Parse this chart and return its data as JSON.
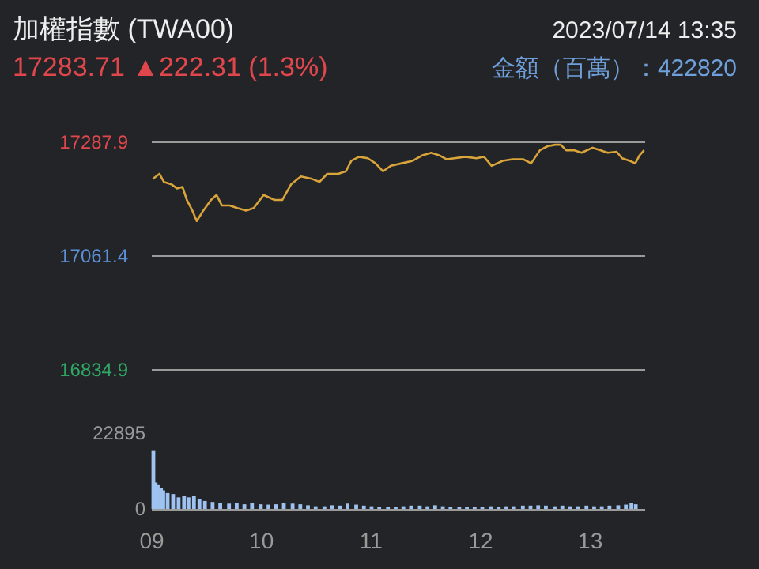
{
  "chart_data": [
    {
      "type": "line",
      "title": "加權指數 (TWA00)",
      "subtitle": "17283.71 ▲222.31 (1.3%)",
      "annotations": [
        "2023/07/14 13:35",
        "金額（百萬）：422820"
      ],
      "xlim": [
        9,
        13.5
      ],
      "ylim": [
        16834.9,
        17287.9
      ],
      "yticks": [
        17287.9,
        17061.4,
        16834.9
      ],
      "grid": "y",
      "tick_labels": "y",
      "series": [
        {
          "color": "#d9a43a",
          "x": [
            9.01,
            9.07,
            9.11,
            9.18,
            9.23,
            9.28,
            9.32,
            9.37,
            9.41,
            9.47,
            9.54,
            9.59,
            9.64,
            9.71,
            9.78,
            9.86,
            9.93,
            10.02,
            10.12,
            10.19,
            10.27,
            10.36,
            10.46,
            10.53,
            10.6,
            10.7,
            10.77,
            10.82,
            10.89,
            10.97,
            11.04,
            11.11,
            11.18,
            11.28,
            11.38,
            11.47,
            11.55,
            11.62,
            11.69,
            11.76,
            11.86,
            11.96,
            12.03,
            12.1,
            12.2,
            12.29,
            12.39,
            12.46,
            12.54,
            12.61,
            12.68,
            12.73,
            12.78,
            12.85,
            12.92,
            13.02,
            13.09,
            13.16,
            13.24,
            13.29,
            13.36,
            13.41,
            13.45,
            13.49
          ],
          "values": [
            17215,
            17225,
            17209,
            17204,
            17196,
            17199,
            17173,
            17152,
            17131,
            17152,
            17173,
            17183,
            17162,
            17162,
            17157,
            17152,
            17157,
            17183,
            17173,
            17173,
            17204,
            17220,
            17215,
            17209,
            17225,
            17225,
            17230,
            17251,
            17259,
            17256,
            17246,
            17230,
            17241,
            17246,
            17251,
            17262,
            17267,
            17262,
            17254,
            17256,
            17259,
            17256,
            17259,
            17241,
            17251,
            17254,
            17254,
            17246,
            17272,
            17280,
            17283,
            17283,
            17272,
            17272,
            17267,
            17277,
            17272,
            17267,
            17269,
            17256,
            17251,
            17246,
            17262,
            17272
          ]
        }
      ]
    },
    {
      "type": "bar",
      "xlim": [
        9,
        13.5
      ],
      "xticks": [
        {
          "value": 9,
          "label": "09"
        },
        10,
        11,
        12,
        13
      ],
      "ylim": [
        0,
        22895
      ],
      "yticks": [
        0,
        22895
      ],
      "series": [
        {
          "color": "#9ec3f0",
          "x": [
            9.0,
            9.02,
            9.04,
            9.07,
            9.09,
            9.13,
            9.18,
            9.23,
            9.28,
            9.32,
            9.37,
            9.42,
            9.47,
            9.54,
            9.61,
            9.69,
            9.76,
            9.83,
            9.9,
            9.98,
            10.05,
            10.12,
            10.19,
            10.27,
            10.34,
            10.41,
            10.48,
            10.56,
            10.63,
            10.7,
            10.77,
            10.85,
            10.92,
            10.99,
            11.06,
            11.14,
            11.21,
            11.28,
            11.35,
            11.43,
            11.5,
            11.57,
            11.64,
            11.71,
            11.79,
            11.86,
            11.93,
            12.0,
            12.08,
            12.15,
            12.22,
            12.29,
            12.37,
            12.44,
            12.51,
            12.58,
            12.66,
            12.73,
            12.8,
            12.87,
            12.95,
            13.02,
            13.09,
            13.16,
            13.24,
            13.31,
            13.36,
            13.4
          ],
          "values": [
            17500,
            8000,
            7200,
            6400,
            5600,
            4800,
            4500,
            3500,
            4000,
            3500,
            4000,
            2900,
            2400,
            2100,
            1900,
            1600,
            1800,
            1400,
            1900,
            1400,
            1300,
            1400,
            1800,
            1600,
            1400,
            1100,
            800,
            800,
            1100,
            1000,
            1600,
            1300,
            1000,
            800,
            600,
            600,
            600,
            800,
            1000,
            1000,
            800,
            1100,
            800,
            600,
            600,
            600,
            600,
            600,
            800,
            600,
            800,
            800,
            1000,
            1000,
            1100,
            1000,
            800,
            1000,
            800,
            800,
            1000,
            800,
            800,
            1000,
            1100,
            1300,
            1900,
            1400
          ]
        }
      ]
    }
  ]
}
